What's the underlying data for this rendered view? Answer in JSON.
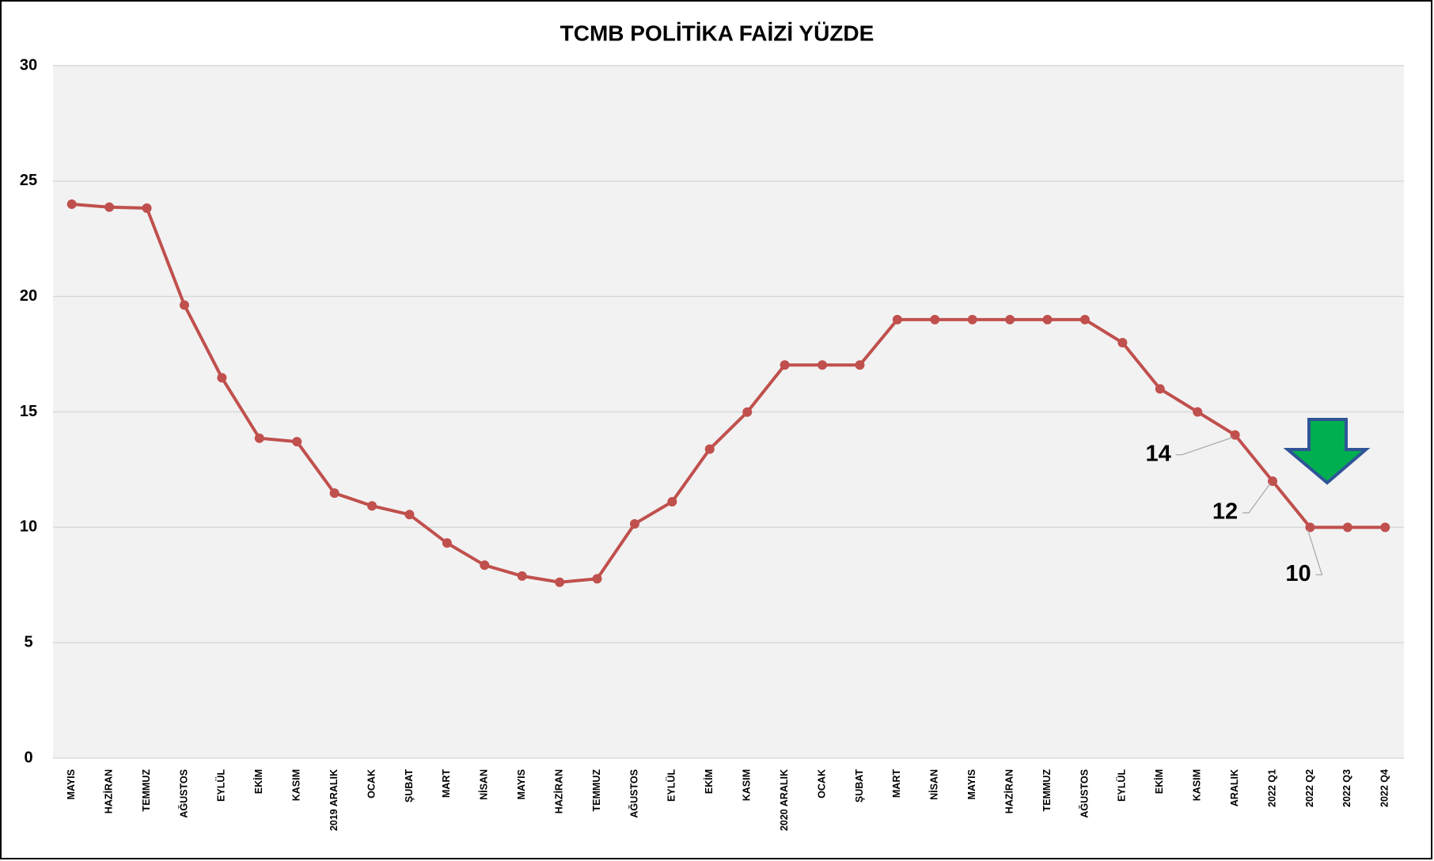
{
  "chart_data": {
    "type": "line",
    "title": "TCMB POLİTİKA FAİZİ YÜZDE",
    "categories": [
      "MAYIS",
      "HAZİRAN",
      "TEMMUZ",
      "AĞUSTOS",
      "EYLÜL",
      "EKİM",
      "KASIM",
      "2019 ARALIK",
      "OCAK",
      "ŞUBAT",
      "MART",
      "NİSAN",
      "MAYIS",
      "HAZİRAN",
      "TEMMUZ",
      "AĞUSTOS",
      "EYLÜL",
      "EKİM",
      "KASIM",
      "2020 ARALIK",
      "OCAK",
      "ŞUBAT",
      "MART",
      "NİSAN",
      "MAYIS",
      "HAZİRAN",
      "TEMMUZ",
      "AĞUSTOS",
      "EYLÜL",
      "EKİM",
      "KASIM",
      "ARALIK",
      "2022 Q1",
      "2022 Q2",
      "2022 Q3",
      "2022 Q4"
    ],
    "series": [
      {
        "name": "TCMB POLİTİKA FAİZİ",
        "color": "#c0504d",
        "values": [
          24,
          23.87,
          23.83,
          19.63,
          16.48,
          13.86,
          13.71,
          11.48,
          10.93,
          10.55,
          9.32,
          8.36,
          7.89,
          7.62,
          7.77,
          10.15,
          11.11,
          13.39,
          14.99,
          17.03,
          17.03,
          17.03,
          19,
          19,
          19,
          19,
          19,
          19,
          18,
          16,
          15,
          14,
          12,
          10,
          10,
          10
        ],
        "value_labels": [
          null,
          null,
          null,
          null,
          null,
          null,
          null,
          null,
          null,
          null,
          null,
          null,
          null,
          null,
          null,
          null,
          null,
          null,
          null,
          null,
          null,
          null,
          null,
          null,
          null,
          null,
          null,
          null,
          null,
          null,
          null,
          "14",
          "12",
          "10",
          null,
          null
        ]
      }
    ],
    "ylim": [
      0,
      30
    ],
    "yticks": [
      0,
      5,
      10,
      15,
      20,
      25,
      30
    ],
    "grid": true
  }
}
